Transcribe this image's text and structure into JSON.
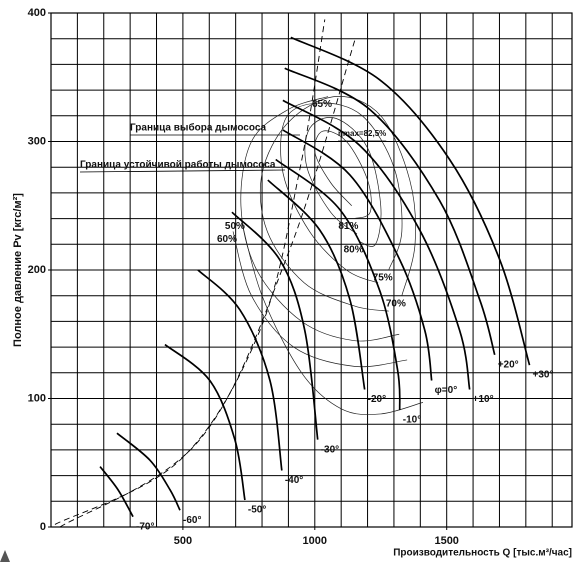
{
  "chart_data": {
    "type": "line",
    "xlabel": "Производительность  Q [тыс.м³/час]",
    "ylabel": "Полное давление  Pv [кгс/м²]",
    "xlim": [
      0,
      1975
    ],
    "ylim": [
      0,
      400
    ],
    "xticks": [
      500,
      1000,
      1500
    ],
    "yticks": [
      0,
      100,
      200,
      300,
      400
    ],
    "xgrid": [
      100,
      200,
      300,
      400,
      500,
      600,
      700,
      800,
      900,
      1000,
      1100,
      1200,
      1300,
      1400,
      1500,
      1600,
      1700,
      1800,
      1900
    ],
    "ygrid": [
      20,
      40,
      60,
      80,
      100,
      120,
      140,
      160,
      180,
      200,
      220,
      240,
      260,
      280,
      300,
      320,
      340,
      360,
      380
    ],
    "grid": true,
    "color": "#000000",
    "series": [
      {
        "name": "+30°",
        "x": [
          909,
          1246,
          1511,
          1701,
          1814
        ],
        "values": [
          381,
          348,
          286,
          208,
          126
        ]
      },
      {
        "name": "+20°",
        "x": [
          886,
          1208,
          1473,
          1625,
          1682
        ],
        "values": [
          357,
          325,
          254,
          177,
          134
        ]
      },
      {
        "name": "+10°",
        "x": [
          879,
          1170,
          1398,
          1549,
          1587
        ],
        "values": [
          332,
          297,
          231,
          153,
          107
        ]
      },
      {
        "name": "φ=0°",
        "x": [
          879,
          1133,
          1322,
          1417,
          1443
        ],
        "values": [
          309,
          274,
          208,
          153,
          114
        ]
      },
      {
        "name": "-10°",
        "x": [
          852,
          1095,
          1246,
          1314,
          1322
        ],
        "values": [
          286,
          247,
          184,
          122,
          91
        ]
      },
      {
        "name": "-20°",
        "x": [
          822,
          1019,
          1133,
          1189
        ],
        "values": [
          270,
          231,
          177,
          107
        ]
      },
      {
        "name": "-30°",
        "x": [
          686,
          867,
          962,
          1011
        ],
        "values": [
          245,
          208,
          153,
          68
        ]
      },
      {
        "name": "-40°",
        "x": [
          557,
          716,
          830,
          875
        ],
        "values": [
          200,
          169,
          114,
          44
        ]
      },
      {
        "name": "-50°",
        "x": [
          432,
          602,
          697,
          735
        ],
        "values": [
          142,
          114,
          68,
          21
        ]
      },
      {
        "name": "-60°",
        "x": [
          250,
          375,
          451,
          489
        ],
        "values": [
          73,
          52,
          29,
          13
        ]
      },
      {
        "name": "-70°",
        "x": [
          186,
          254,
          311
        ],
        "values": [
          47,
          29,
          8
        ]
      }
    ],
    "contours": [
      {
        "name": "81%",
        "x": [
          1140,
          1060,
          1000,
          1030,
          1120,
          1200,
          1210,
          1150
        ],
        "values": [
          250,
          268,
          292,
          308,
          300,
          270,
          245,
          240
        ]
      },
      {
        "name": "80%",
        "x": [
          1160,
          1060,
          970,
          980,
          1080,
          1200,
          1250,
          1230,
          1170
        ],
        "values": [
          228,
          245,
          280,
          310,
          318,
          295,
          250,
          220,
          222
        ]
      },
      {
        "name": "75%",
        "x": [
          1240,
          1120,
          980,
          880,
          890,
          1020,
          1180,
          1300,
          1330,
          1280
        ],
        "values": [
          190,
          200,
          230,
          275,
          318,
          330,
          320,
          280,
          230,
          200
        ]
      },
      {
        "name": "70%",
        "x": [
          1280,
          1150,
          960,
          820,
          800,
          900,
          1080,
          1250,
          1360,
          1380,
          1330
        ],
        "values": [
          168,
          172,
          190,
          230,
          275,
          315,
          335,
          320,
          270,
          220,
          180
        ]
      },
      {
        "name": "65%",
        "x": [
          1320,
          1150,
          950,
          780,
          720,
          760,
          900,
          1050
        ],
        "values": [
          150,
          145,
          160,
          200,
          250,
          300,
          325,
          335
        ]
      },
      {
        "name": "60%",
        "x": [
          1350,
          1150,
          920,
          760,
          690
        ],
        "values": [
          130,
          125,
          140,
          180,
          230
        ]
      },
      {
        "name": "50%",
        "x": [
          1410,
          1250,
          1100,
          950,
          800,
          720
        ],
        "values": [
          97,
          88,
          92,
          120,
          180,
          240
        ]
      }
    ],
    "boundaries": [
      {
        "x": [
          15,
          489,
          792,
          943,
          1038
        ],
        "values": [
          2,
          52,
          153,
          278,
          395
        ]
      },
      {
        "x": [
          34,
          564,
          905,
          1152
        ],
        "values": [
          0,
          68,
          216,
          379
        ]
      }
    ],
    "annotations": [
      "Граница выбора дымососа",
      "Граница устойчивой работы дымососа",
      "ηmax=82,5%"
    ]
  }
}
